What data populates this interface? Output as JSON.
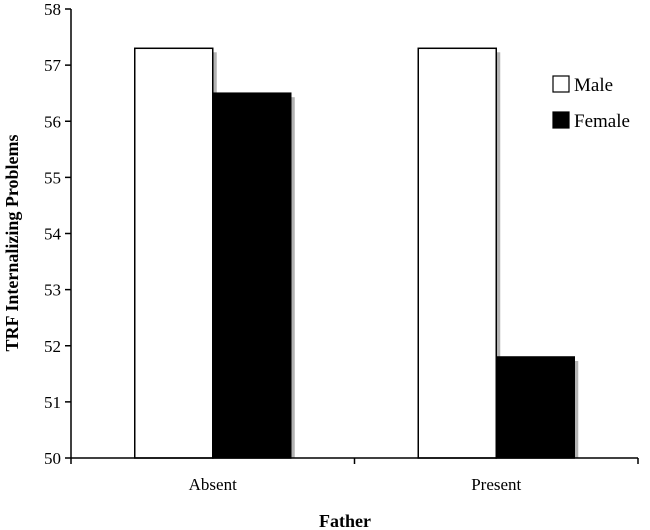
{
  "chart_data": {
    "type": "bar",
    "title": "",
    "xlabel": "Father",
    "ylabel": "TRF Internalizing Problems",
    "ylim": [
      50,
      58
    ],
    "yticks": [
      50,
      51,
      52,
      53,
      54,
      55,
      56,
      57,
      58
    ],
    "categories": [
      "Absent",
      "Present"
    ],
    "series": [
      {
        "name": "Male",
        "values": [
          57.3,
          57.3
        ],
        "color": "#ffffff"
      },
      {
        "name": "Female",
        "values": [
          56.5,
          51.8
        ],
        "color": "#000000"
      }
    ],
    "legend_position": "right",
    "grid": false
  }
}
